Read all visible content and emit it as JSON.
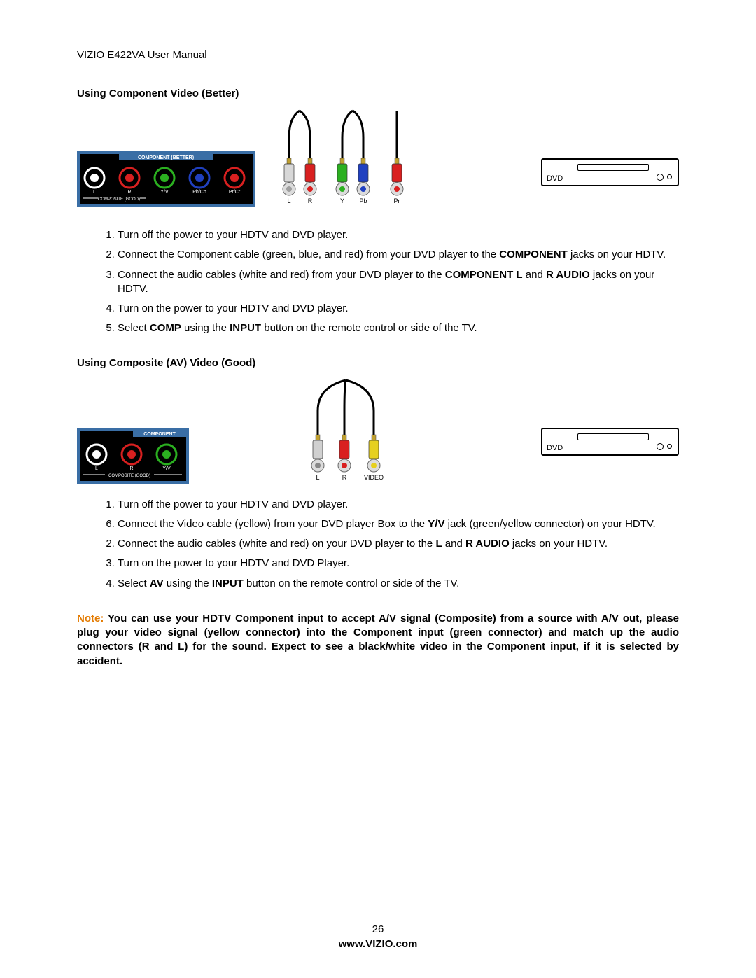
{
  "doc_header": "VIZIO E422VA User Manual",
  "section1": {
    "title": "Using Component Video (Better)",
    "panel": {
      "header": "COMPONENT (BETTER)",
      "bg": "#3a6ea5",
      "jacks": [
        {
          "fill": "#ffffff",
          "ring": "#ffffff",
          "label": "L"
        },
        {
          "fill": "#d92020",
          "ring": "#d92020",
          "label": "R"
        },
        {
          "fill": "#2bb020",
          "ring": "#2bb020",
          "label": "Y/V"
        },
        {
          "fill": "#2040c0",
          "ring": "#2040c0",
          "label": "Pb/Cb"
        },
        {
          "fill": "#d92020",
          "ring": "#d92020",
          "label": "Pr/Cr"
        }
      ],
      "footer": "COMPOSITE (GOOD)"
    },
    "cables": {
      "pairs": [
        {
          "left": "#d0d0d0",
          "right": "#d92020",
          "left_dot": "#888888",
          "right_dot": "#d92020",
          "labels": [
            "L",
            "R"
          ]
        },
        {
          "left": "#2bb020",
          "right": "#2040c0",
          "left_dot": "#2bb020",
          "right_dot": "#2040c0",
          "labels": [
            "Y",
            "Pb"
          ]
        },
        {
          "left": "#d92020",
          "right": null,
          "left_dot": "#d92020",
          "right_dot": null,
          "labels": [
            "Pr"
          ]
        }
      ],
      "tip_color": "#c0a030",
      "wire_color": "#000000"
    },
    "dvd": {
      "label": "DVD"
    },
    "steps": [
      {
        "n": "1",
        "html": "Turn off the power to your HDTV and DVD player."
      },
      {
        "n": "2",
        "html": "Connect the Component cable (green, blue, and red) from your DVD player to the <b>COMPONENT</b> jacks on your HDTV."
      },
      {
        "n": "3",
        "html": "Connect the audio cables (white and red) from your DVD player to the <b>COMPONENT L</b> and <b>R AUDIO</b> jacks on your HDTV."
      },
      {
        "n": "4",
        "html": "Turn on the power to your HDTV and DVD player."
      },
      {
        "n": "5",
        "html": "Select <b>COMP</b> using the <b>INPUT</b> button on the remote control or side of the TV."
      }
    ]
  },
  "section2": {
    "title": "Using Composite (AV) Video (Good)",
    "panel": {
      "header": "COMPONENT",
      "jacks": [
        {
          "fill": "#ffffff",
          "label": "L"
        },
        {
          "fill": "#d92020",
          "label": "R"
        },
        {
          "fill": "#2bb020",
          "label": "Y/V"
        }
      ],
      "footer": "COMPOSITE (GOOD)"
    },
    "cables": {
      "trio": [
        {
          "body": "#d0d0d0",
          "dot": "#888888",
          "label": "L"
        },
        {
          "body": "#d92020",
          "dot": "#d92020",
          "label": "R"
        },
        {
          "body": "#e6d020",
          "dot": "#e6d020",
          "label": "VIDEO"
        }
      ],
      "tip_color": "#c0a030",
      "wire_color": "#000000"
    },
    "dvd": {
      "label": "DVD"
    },
    "steps": [
      {
        "n": "1",
        "html": "Turn off the power to your HDTV and DVD player."
      },
      {
        "n": "6",
        "html": "Connect the Video cable (yellow) from your DVD player Box to the <b>Y/V</b> jack (green/yellow connector) on your HDTV."
      },
      {
        "n": "2",
        "html": "Connect the audio cables (white and red) on your DVD player to the <b>L</b> and <b>R AUDIO</b> jacks on your HDTV."
      },
      {
        "n": "3",
        "html": "Turn on the power to your HDTV and DVD Player."
      },
      {
        "n": "4",
        "html": "Select <b>AV</b> using the <b>INPUT</b> button on the remote control or side of the TV."
      }
    ]
  },
  "note": {
    "label": "Note:  ",
    "body": "You can use your HDTV Component input to accept A/V signal (Composite) from a source with A/V out, please plug your video signal (yellow connector) into the Component input (green connector) and match up the audio connectors (R and L) for the sound. Expect to see a black/white video in the Component input, if it is selected by accident."
  },
  "footer": {
    "page": "26",
    "url": "www.VIZIO.com"
  }
}
